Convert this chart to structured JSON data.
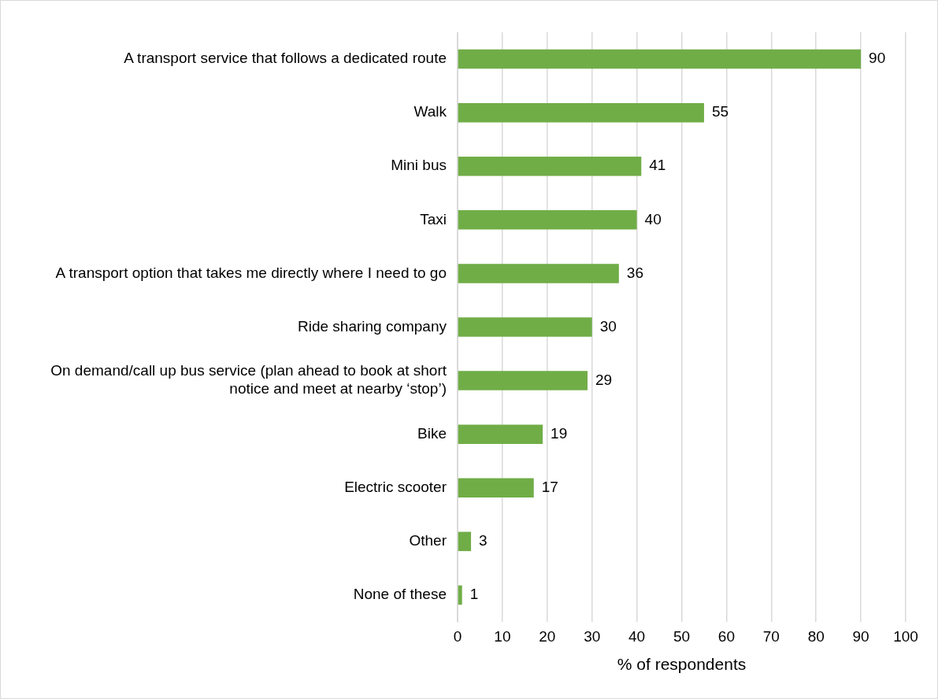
{
  "chart_data": {
    "type": "bar",
    "orientation": "horizontal",
    "categories": [
      "A transport service that follows a dedicated route",
      "Walk",
      "Mini bus",
      "Taxi",
      "A transport option that takes me directly where I need to go",
      "Ride sharing company",
      "On demand/call up bus service (plan ahead to book at short notice and meet at nearby ‘stop’)",
      "Bike",
      "Electric scooter",
      "Other",
      "None of these"
    ],
    "values": [
      90,
      55,
      41,
      40,
      36,
      30,
      29,
      19,
      17,
      3,
      1
    ],
    "color": "#70ad47",
    "xlabel": "% of respondents",
    "xlim": [
      0,
      100
    ],
    "xticks": [
      0,
      10,
      20,
      30,
      40,
      50,
      60,
      70,
      80,
      90,
      100
    ],
    "grid": "x",
    "legend": false,
    "data_labels": true
  }
}
